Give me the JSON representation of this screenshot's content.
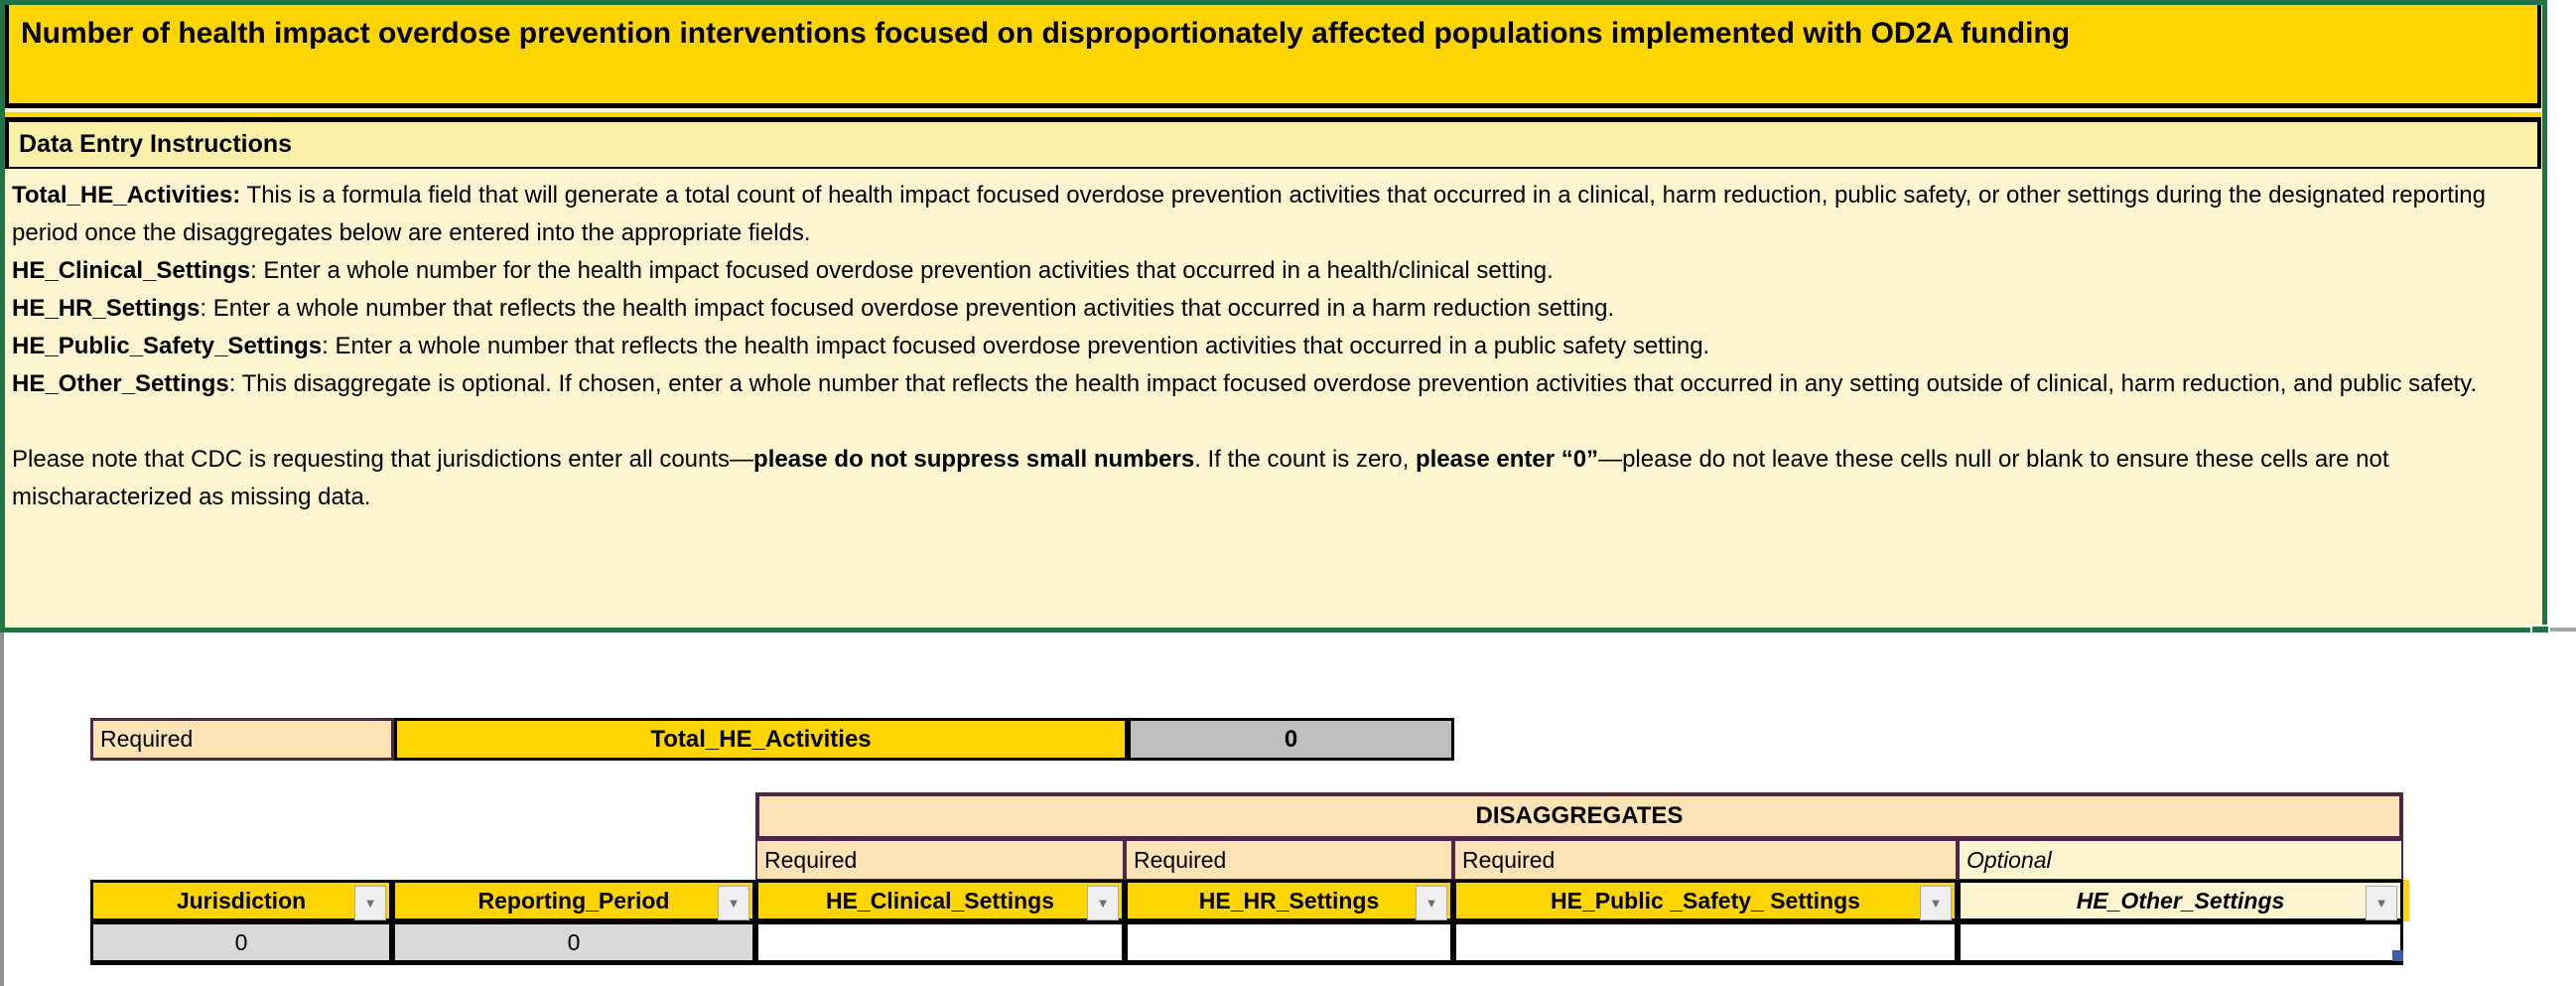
{
  "title": "Number of health impact overdose prevention interventions focused on disproportionately affected populations implemented with OD2A funding",
  "instructions_header": "Data Entry Instructions",
  "instructions": {
    "paragraphs": [
      [
        {
          "b": "Total_HE_Activities:"
        },
        {
          "t": " This is a formula field that will generate a total count of health impact focused overdose prevention activities that occurred in a clinical, harm reduction, public safety, or other settings during the designated reporting period once the disaggregates below are entered into the appropriate fields."
        }
      ],
      [
        {
          "b": "HE_Clinical_Settings"
        },
        {
          "t": ": Enter a whole number for the health impact focused overdose prevention activities that occurred in a health/clinical setting."
        }
      ],
      [
        {
          "b": "HE_HR_Settings"
        },
        {
          "t": ": Enter a whole number that reflects the health impact focused overdose prevention activities that occurred in a harm reduction setting."
        }
      ],
      [
        {
          "b": "HE_Public_Safety_Settings"
        },
        {
          "t": ": Enter a whole number that reflects the health impact focused overdose prevention activities that occurred in a public safety setting."
        }
      ],
      [
        {
          "b": "HE_Other_Settings"
        },
        {
          "t": ": This disaggregate is optional. If chosen, enter a whole number that reflects the health impact focused overdose prevention activities that occurred in any setting outside of clinical, harm reduction, and public safety."
        }
      ],
      [],
      [
        {
          "t": "Please note that CDC is requesting that jurisdictions enter all counts—"
        },
        {
          "b": "please do not suppress small numbers"
        },
        {
          "t": ". If the count is zero, "
        },
        {
          "b": "please enter “0”"
        },
        {
          "t": "—please do not leave these cells null or blank to ensure these cells are not mischaracterized as missing data."
        }
      ]
    ]
  },
  "summary_row": {
    "requirement_label": "Required",
    "field_label": "Total_HE_Activities",
    "value": "0"
  },
  "disaggregates": {
    "title": "DISAGGREGATES",
    "requirement_labels": [
      "Required",
      "Required",
      "Required",
      "Optional"
    ],
    "columns": [
      {
        "label": "Jurisdiction"
      },
      {
        "label": "Reporting_Period"
      },
      {
        "label": "HE_Clinical_Settings"
      },
      {
        "label": "HE_HR_Settings"
      },
      {
        "label": "HE_Public _Safety_ Settings"
      },
      {
        "label": "HE_Other_Settings"
      }
    ],
    "filter_icon": "▼",
    "row": {
      "jurisdiction": "0",
      "reporting_period": "0",
      "he_clinical_settings": "",
      "he_hr_settings": "",
      "he_public_safety_settings": "",
      "he_other_settings": ""
    }
  },
  "colors": {
    "gold": "#FFD500",
    "bar_yellow": "#FAEFA6",
    "pale_yellow": "#FDF5CF",
    "peach": "#FCE3B5",
    "selection_green": "#217346",
    "table_purple": "#4F2649",
    "gray_value": "#BFBFBF",
    "gray_row": "#D9D9D9",
    "handle_blue": "#3B5EAB"
  }
}
